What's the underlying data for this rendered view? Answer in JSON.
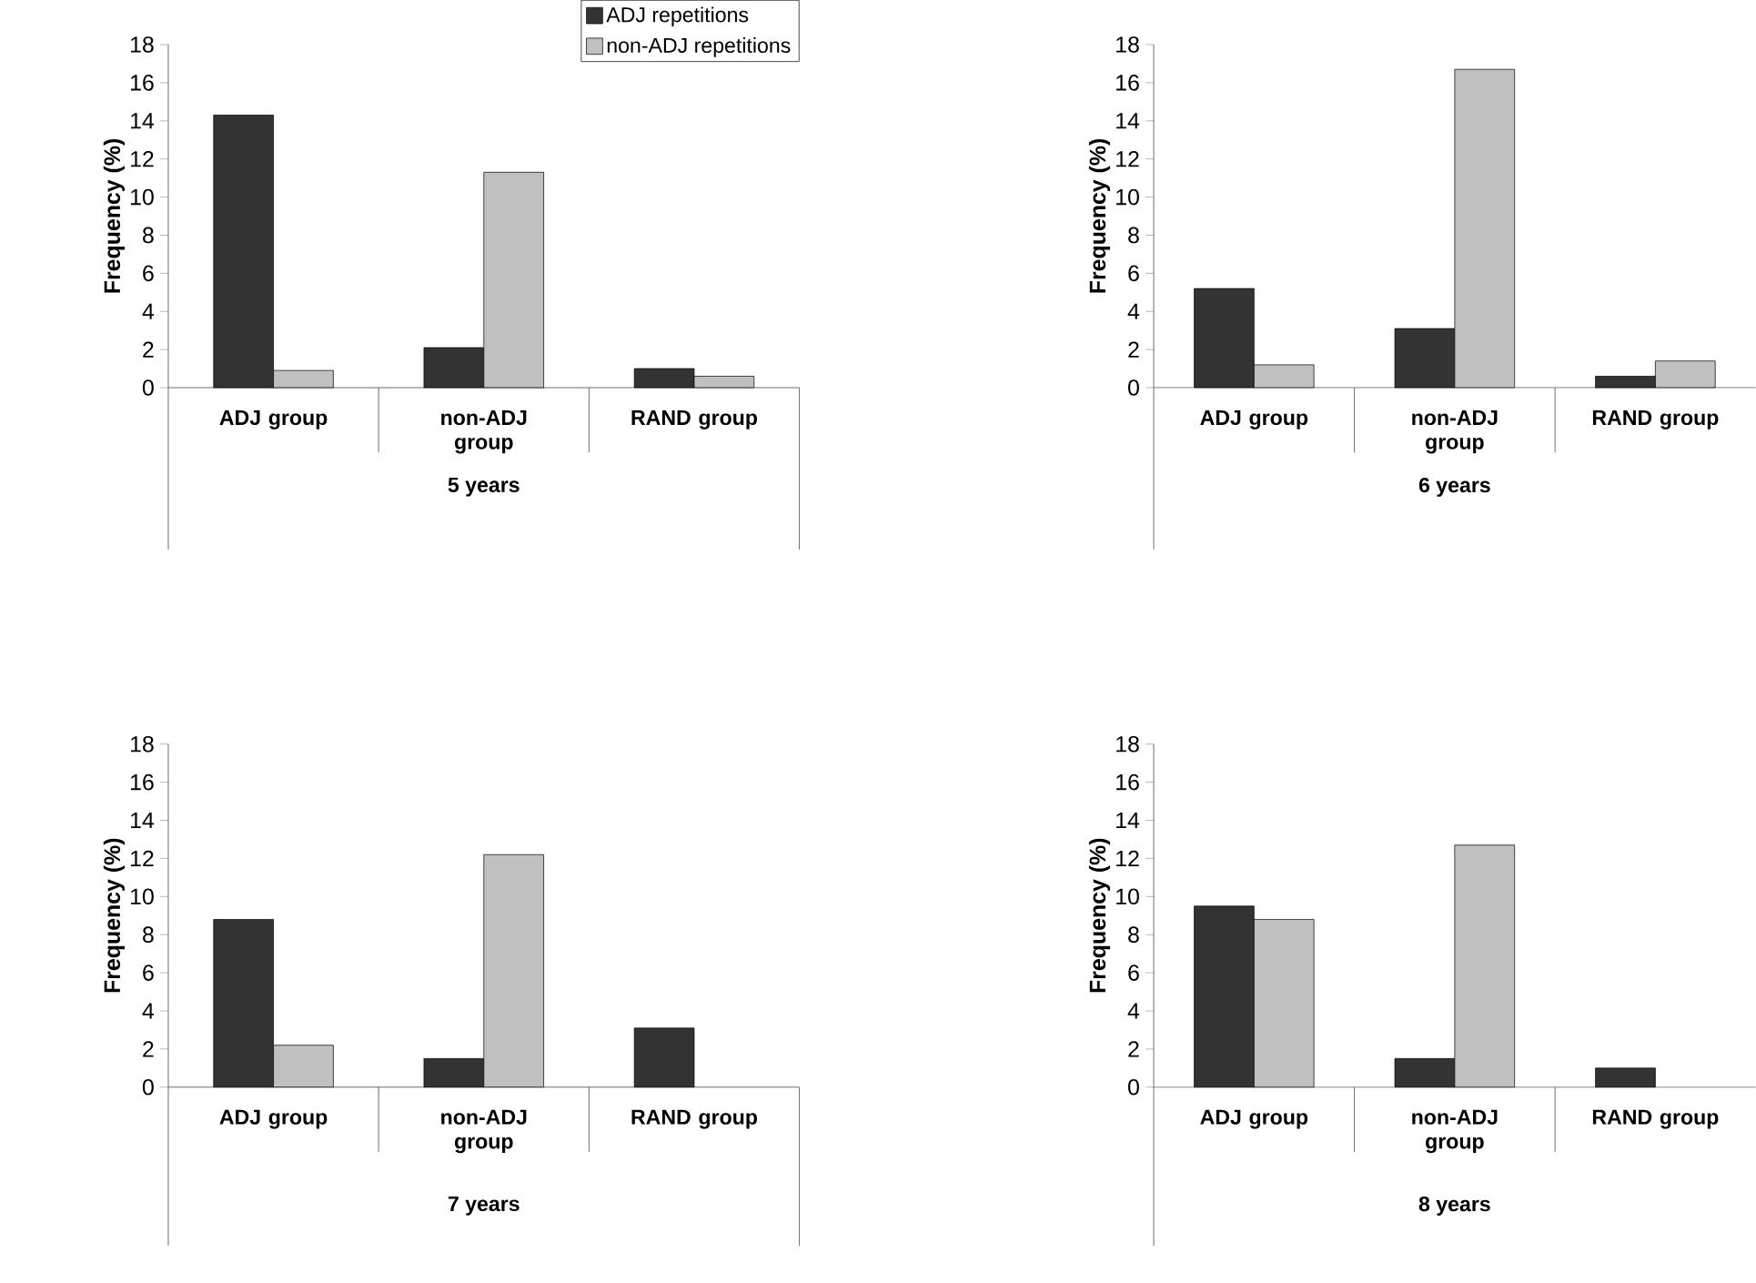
{
  "chart_data": [
    {
      "type": "bar",
      "categories": [
        "ADJ group",
        "non-ADJ group",
        "RAND group"
      ],
      "xlabel": "5 years",
      "ylabel": "Frequency (%)",
      "ylim": [
        0,
        18
      ],
      "yticks": [
        0,
        2,
        4,
        6,
        8,
        10,
        12,
        14,
        16,
        18
      ],
      "legend": "top right",
      "series": [
        {
          "name": "ADJ repetitions",
          "color": "#333333",
          "values": [
            14.3,
            2.1,
            1.0
          ]
        },
        {
          "name": "non-ADJ repetitions",
          "color": "#c0c0c0",
          "values": [
            0.9,
            11.3,
            0.6
          ]
        }
      ]
    },
    {
      "type": "bar",
      "categories": [
        "ADJ group",
        "non-ADJ group",
        "RAND group"
      ],
      "xlabel": "6 years",
      "ylabel": "Frequency (%)",
      "ylim": [
        0,
        18
      ],
      "yticks": [
        0,
        2,
        4,
        6,
        8,
        10,
        12,
        14,
        16,
        18
      ],
      "series": [
        {
          "color": "#333333",
          "values": [
            5.2,
            3.1,
            0.6
          ]
        },
        {
          "color": "#c0c0c0",
          "values": [
            1.2,
            16.7,
            1.4
          ]
        }
      ]
    },
    {
      "type": "bar",
      "categories": [
        "ADJ group",
        "non-ADJ group",
        "RAND group"
      ],
      "xlabel": "7 years",
      "ylabel": "Frequency (%)",
      "ylim": [
        0,
        18
      ],
      "yticks": [
        0,
        2,
        4,
        6,
        8,
        10,
        12,
        14,
        16,
        18
      ],
      "series": [
        {
          "color": "#333333",
          "values": [
            8.8,
            1.5,
            3.1
          ]
        },
        {
          "color": "#c0c0c0",
          "values": [
            2.2,
            12.2,
            null
          ]
        }
      ]
    },
    {
      "type": "bar",
      "categories": [
        "ADJ group",
        "non-ADJ group",
        "RAND group"
      ],
      "xlabel": "8 years",
      "ylabel": "Frequency (%)",
      "ylim": [
        0,
        18
      ],
      "yticks": [
        0,
        2,
        4,
        6,
        8,
        10,
        12,
        14,
        16,
        18
      ],
      "series": [
        {
          "color": "#333333",
          "values": [
            9.5,
            1.5,
            1.0
          ]
        },
        {
          "color": "#c0c0c0",
          "values": [
            8.8,
            12.7,
            null
          ]
        }
      ]
    }
  ]
}
